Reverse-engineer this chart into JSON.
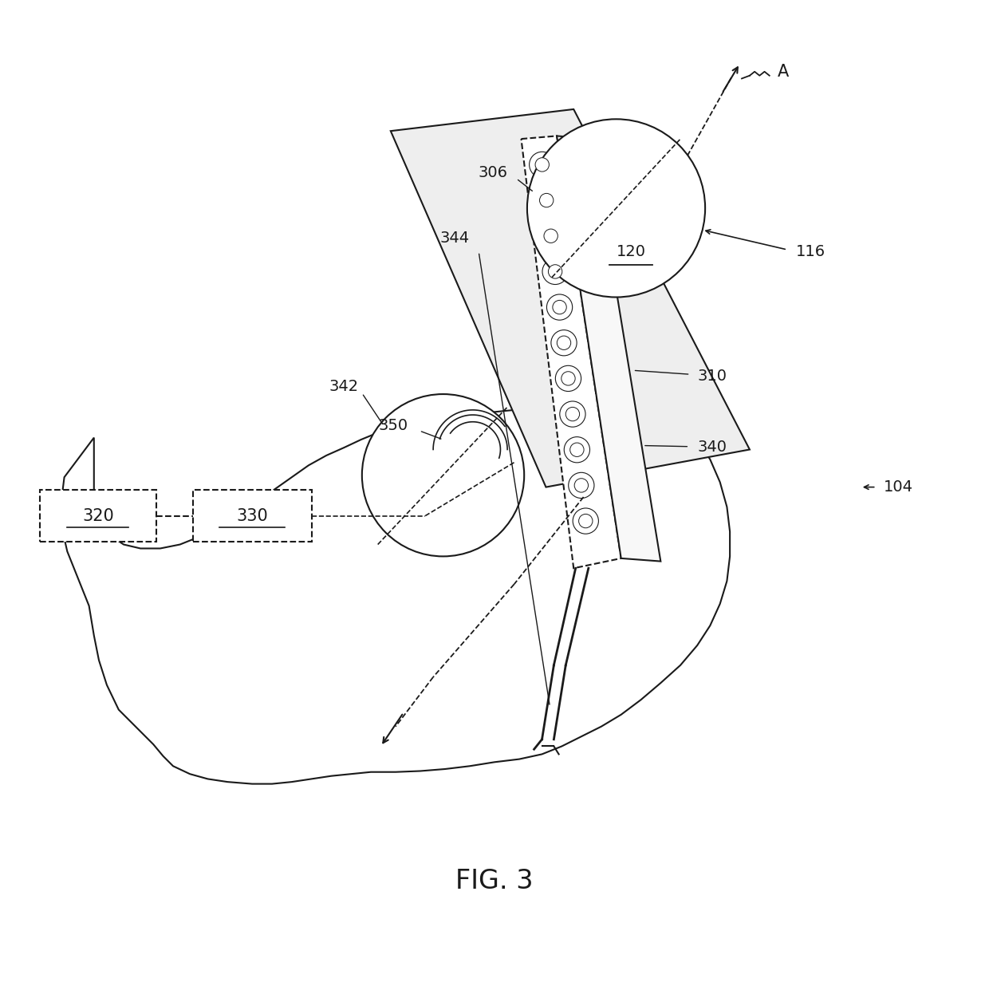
{
  "bg_color": "#ffffff",
  "line_color": "#1a1a1a",
  "figure_label": "FIG. 3",
  "box320_label": "320",
  "box330_label": "330",
  "label_A": "A",
  "label_306": "306",
  "label_116": "116",
  "label_310": "310",
  "label_340": "340",
  "label_350": "350",
  "label_342": "342",
  "label_344": "344",
  "label_120": "120",
  "label_104": "104"
}
